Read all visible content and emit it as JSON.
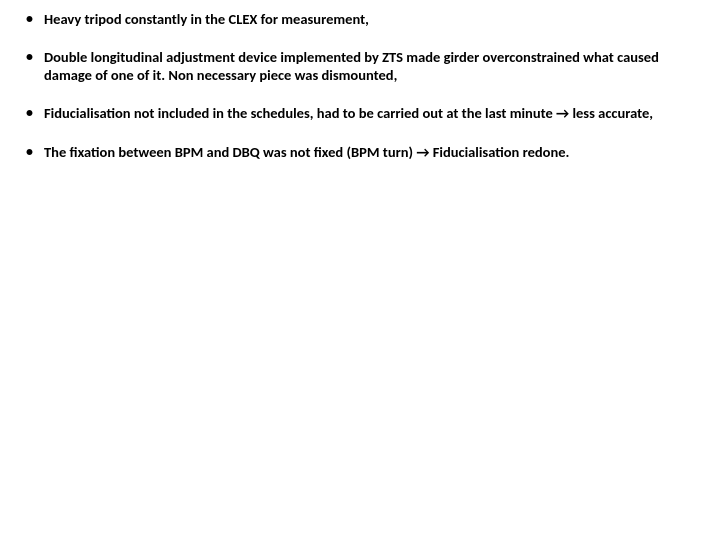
{
  "bullets": [
    {
      "text": "Heavy tripod constantly in the CLEX for measurement,"
    },
    {
      "text": "Double longitudinal adjustment device implemented by ZTS made girder overconstrained what caused damage of one of it. Non necessary piece was dismounted,"
    },
    {
      "text": "Fiducialisation not included in the schedules, had to be carried out at the last minute → less accurate,"
    },
    {
      "text": "The fixation between BPM and DBQ was not fixed (BPM turn) → Fiducialisation redone."
    }
  ],
  "colors": {
    "background": "#ffffff",
    "text": "#000000"
  },
  "typography": {
    "font_family": "Calibri",
    "font_size_pt": 11,
    "font_weight": 600
  }
}
